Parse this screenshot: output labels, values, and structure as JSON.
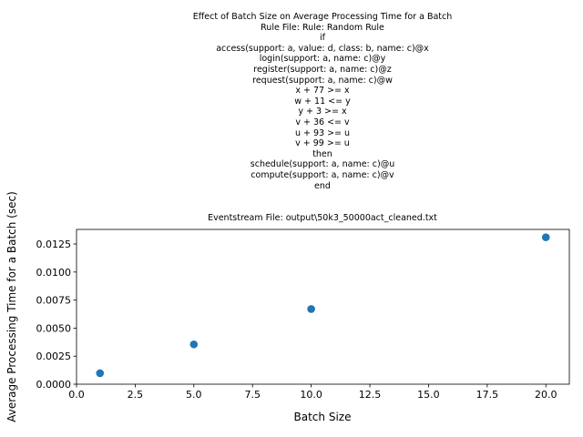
{
  "title_lines": [
    "Effect of Batch Size on Average Processing Time for a Batch",
    "Rule File: Rule: Random Rule",
    "if",
    "access(support: a, value: d, class: b, name: c)@x",
    "login(support: a, name: c)@y",
    "register(support: a, name: c)@z",
    "request(support: a, name: c)@w",
    "x + 77 >= x",
    "w + 11 <= y",
    "y + 3 >= x",
    "v + 36 <= v",
    "u + 93 >= u",
    "v + 99 >= u",
    "then",
    "schedule(support: a, name: c)@u",
    "compute(support: a, name: c)@v",
    "end"
  ],
  "subtitle": "Eventstream File: output\\50k3_50000act_cleaned.txt",
  "chart_data": {
    "type": "scatter",
    "xlabel": "Batch Size",
    "ylabel": "Average Processing Time for a Batch (sec)",
    "xlim": [
      0,
      21
    ],
    "ylim": [
      0,
      0.0138
    ],
    "x_ticks": [
      0,
      2.5,
      5,
      7.5,
      10,
      12.5,
      15,
      17.5,
      20
    ],
    "x_tick_labels": [
      "0.0",
      "2.5",
      "5.0",
      "7.5",
      "10.0",
      "12.5",
      "15.0",
      "17.5",
      "20.0"
    ],
    "y_ticks": [
      0,
      0.0025,
      0.005,
      0.0075,
      0.01,
      0.0125
    ],
    "y_tick_labels": [
      "0.0000",
      "0.0025",
      "0.0050",
      "0.0075",
      "0.0100",
      "0.0125"
    ],
    "points": [
      {
        "x": 1,
        "y": 0.00098
      },
      {
        "x": 5,
        "y": 0.00355
      },
      {
        "x": 10,
        "y": 0.0067
      },
      {
        "x": 20,
        "y": 0.0131
      }
    ],
    "marker_color": "#1f77b4",
    "grid": false
  }
}
